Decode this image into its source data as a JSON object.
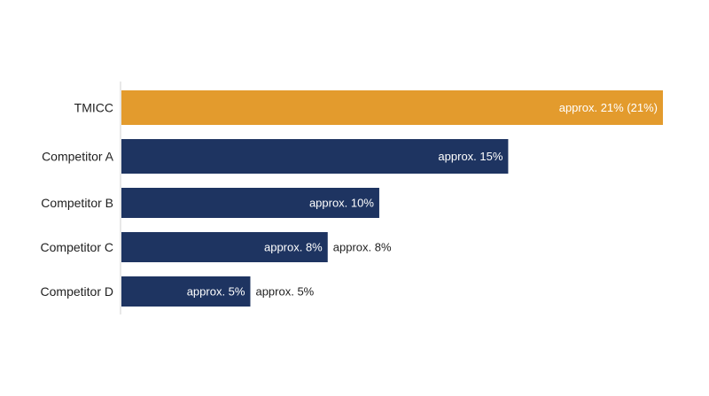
{
  "chart_data": {
    "type": "bar",
    "orientation": "horizontal",
    "categories": [
      "TMICC",
      "Competitor A",
      "Competitor B",
      "Competitor C",
      "Competitor D"
    ],
    "values": [
      21,
      15,
      10,
      8,
      5
    ],
    "xlim": [
      0,
      21
    ],
    "inside_labels": [
      "approx. 21% (21%)",
      "approx. 15%",
      "approx. 10%",
      "approx. 8%",
      "approx. 5%"
    ],
    "outside_labels": [
      "",
      "",
      "",
      "approx. 8%",
      "approx. 5%"
    ],
    "highlight_index": 0,
    "title": "",
    "xlabel": "",
    "ylabel": "",
    "grid": false,
    "legend": "none"
  },
  "colors": {
    "highlight": "#E39B2D",
    "bar": "#1E3461",
    "axis": "#d0d0d0"
  }
}
